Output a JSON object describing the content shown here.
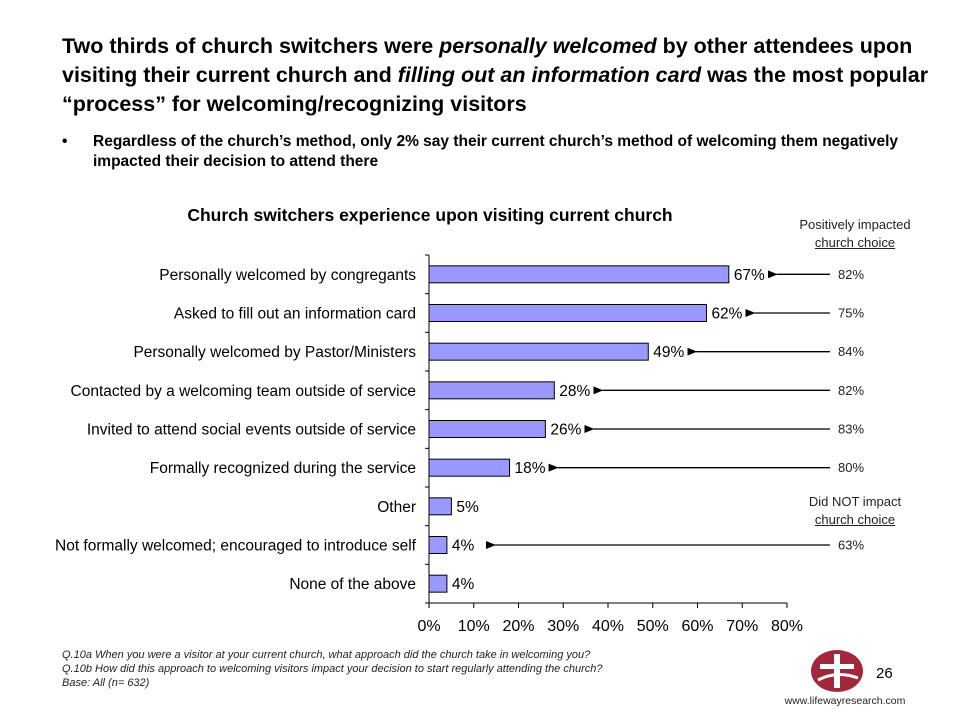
{
  "headline": {
    "part1": "Two thirds of church switchers were ",
    "italic1": "personally welcomed",
    "part2": " by other attendees upon visiting their current church and ",
    "italic2": "filling out an information card",
    "part3": " was the most popular “process” for welcoming/recognizing visitors"
  },
  "bullet": {
    "symbol": "•",
    "text": "Regardless of the church’s method, only 2% say their current church’s method of welcoming them negatively impacted their decision to attend there"
  },
  "side": {
    "positive_line1": "Positively impacted",
    "positive_line2": "church choice",
    "negative_line1": "Did NOT impact",
    "negative_line2": "church choice"
  },
  "chart_data": {
    "type": "bar",
    "orientation": "horizontal",
    "title": "Church switchers experience upon visiting current church",
    "categories": [
      "Personally welcomed by congregants",
      "Asked to fill out an information card",
      "Personally welcomed by Pastor/Ministers",
      "Contacted by a welcoming team outside of service",
      "Invited to attend social events outside of service",
      "Formally recognized during the service",
      "Other",
      "Not formally welcomed; encouraged to introduce self",
      "None of the above"
    ],
    "values": [
      67,
      62,
      49,
      28,
      26,
      18,
      5,
      4,
      4
    ],
    "value_labels": [
      "67%",
      "62%",
      "49%",
      "28%",
      "26%",
      "18%",
      "5%",
      "4%",
      "4%"
    ],
    "xlim": [
      0,
      80
    ],
    "xticks": [
      0,
      10,
      20,
      30,
      40,
      50,
      60,
      70,
      80
    ],
    "xtick_labels": [
      "0%",
      "10%",
      "20%",
      "30%",
      "40%",
      "50%",
      "60%",
      "70%",
      "80%"
    ],
    "bar_color": "#9999ff",
    "grid": false,
    "impact_annotations": [
      {
        "category_index": 0,
        "label": "82%"
      },
      {
        "category_index": 1,
        "label": "75%"
      },
      {
        "category_index": 2,
        "label": "84%"
      },
      {
        "category_index": 3,
        "label": "82%"
      },
      {
        "category_index": 4,
        "label": "83%"
      },
      {
        "category_index": 5,
        "label": "80%"
      },
      {
        "category_index": 7,
        "label": "63%"
      }
    ]
  },
  "footnotes": {
    "q10a": "Q.10a When you were a visitor at your current church, what approach did the church take in welcoming you?",
    "q10b": "Q.10b How did this approach to welcoming visitors impact your decision to start regularly attending the church?",
    "base": "Base: All (n= 632)"
  },
  "page_number": "26",
  "website": "www.lifewayresearch.com",
  "colors": {
    "logo": "#a3273a",
    "arrow": "#000000",
    "axis": "#000000"
  }
}
